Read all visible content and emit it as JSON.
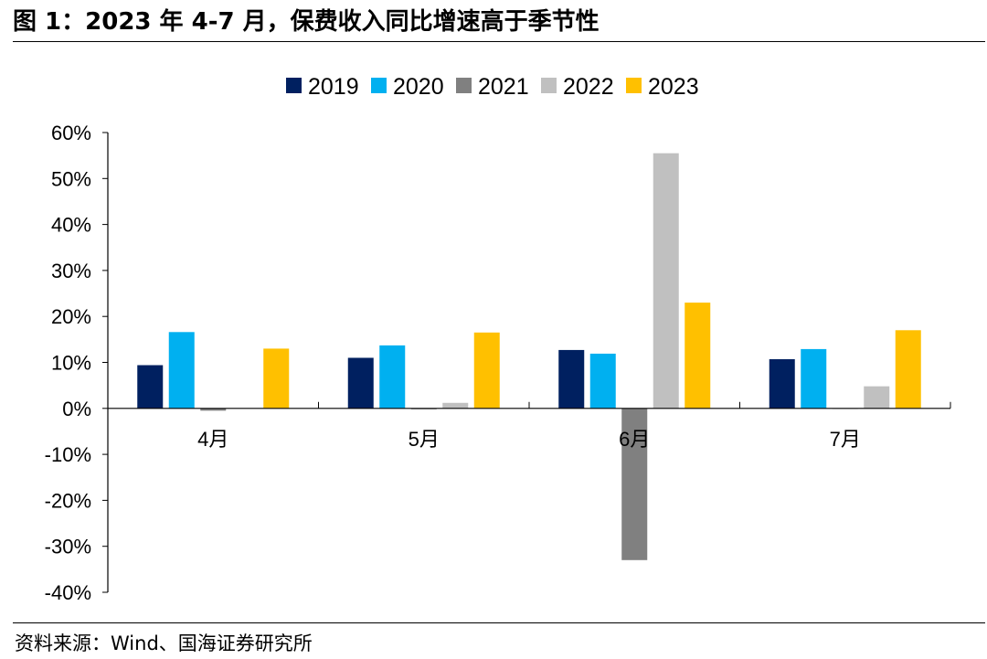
{
  "figure": {
    "title": "图 1：2023 年 4-7 月，保费收入同比增速高于季节性",
    "source": "资料来源：Wind、国海证券研究所"
  },
  "chart_data": {
    "type": "bar",
    "categories": [
      "4月",
      "5月",
      "6月",
      "7月"
    ],
    "series": [
      {
        "name": "2019",
        "color": "#002060",
        "values": [
          0.094,
          0.11,
          0.127,
          0.107
        ]
      },
      {
        "name": "2020",
        "color": "#00B0F0",
        "values": [
          0.166,
          0.137,
          0.119,
          0.129
        ]
      },
      {
        "name": "2021",
        "color": "#808080",
        "values": [
          -0.005,
          -0.002,
          -0.33,
          -0.001
        ]
      },
      {
        "name": "2022",
        "color": "#C0C0C0",
        "values": [
          0.0,
          0.012,
          0.555,
          0.048
        ]
      },
      {
        "name": "2023",
        "color": "#FFC000",
        "values": [
          0.13,
          0.165,
          0.23,
          0.17
        ]
      }
    ],
    "ylim": [
      -0.4,
      0.6
    ],
    "yticks": [
      0.6,
      0.5,
      0.4,
      0.3,
      0.2,
      0.1,
      0.0,
      -0.1,
      -0.2,
      -0.3,
      -0.4
    ],
    "ytick_labels": [
      "60%",
      "50%",
      "40%",
      "30%",
      "20%",
      "10%",
      "0%",
      "-10%",
      "-20%",
      "-30%",
      "-40%"
    ],
    "legend_position": "top-center",
    "grid": false
  }
}
